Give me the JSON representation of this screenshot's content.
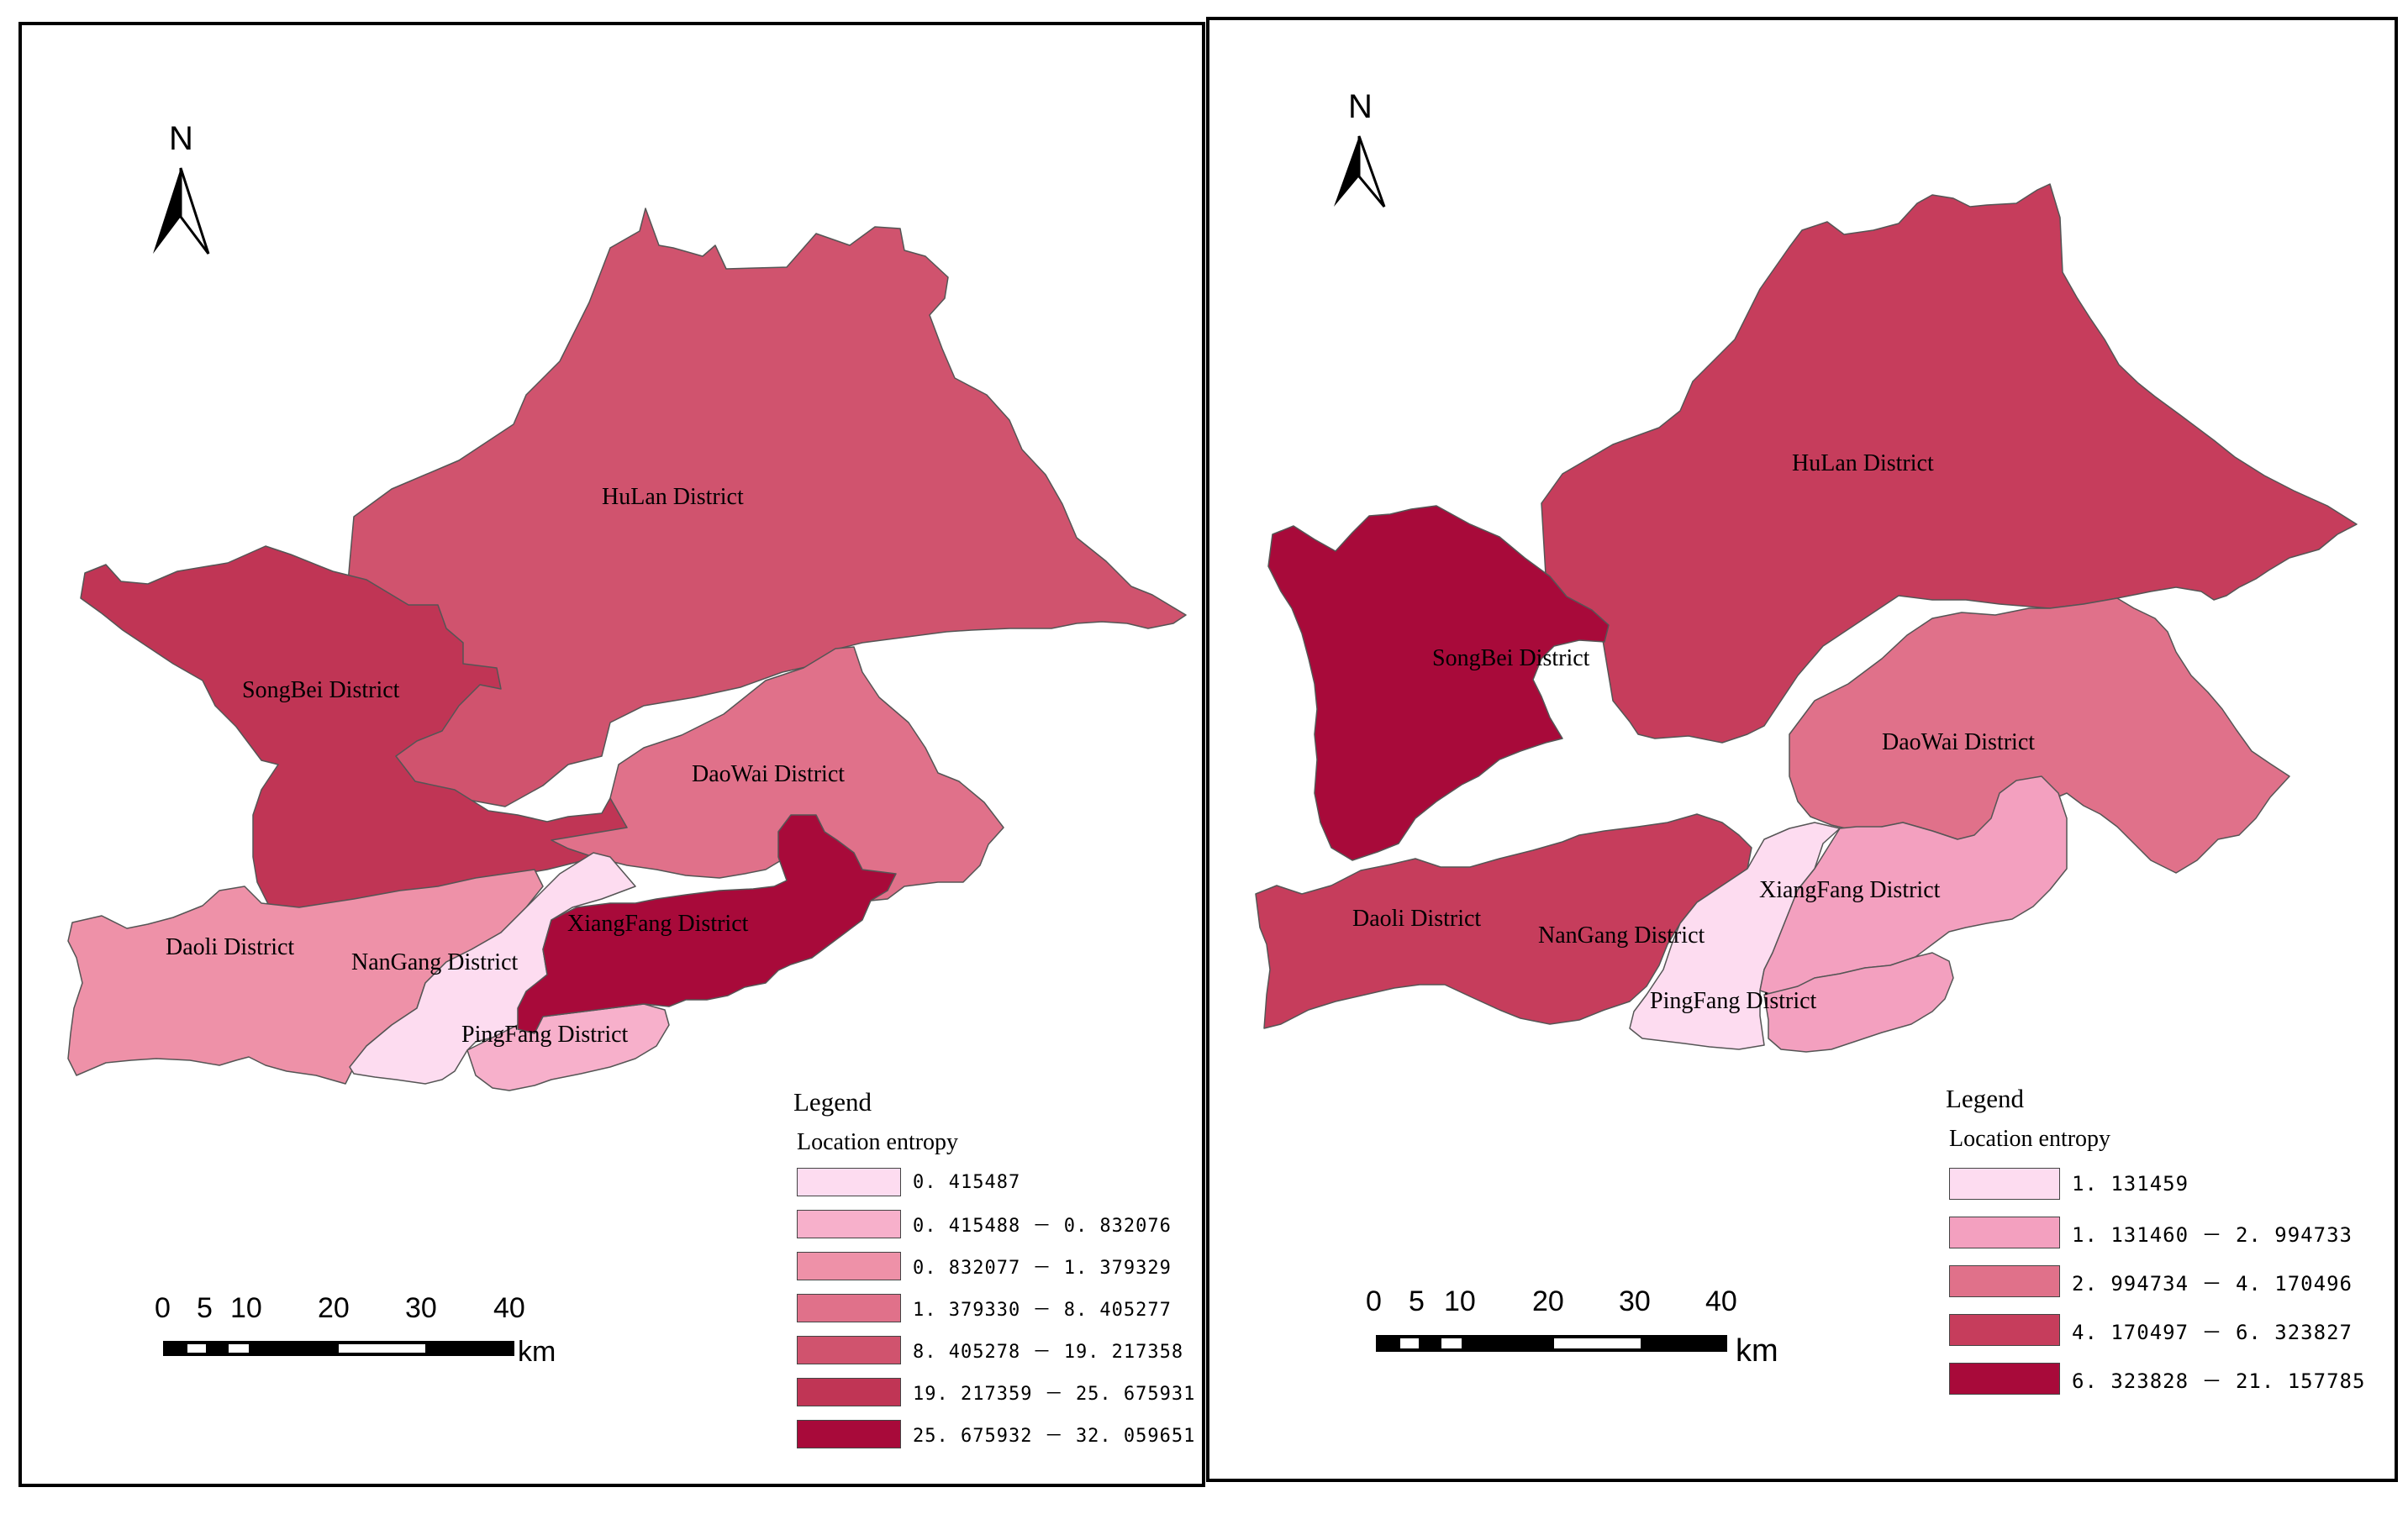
{
  "maps": [
    {
      "id": "left",
      "north": "N",
      "scale": {
        "ticks": [
          "0",
          "5",
          "10",
          "20",
          "30",
          "40"
        ],
        "unit": "km"
      },
      "legend": {
        "title": "Legend",
        "subtitle": "Location entropy",
        "classes": [
          {
            "label": "0. 415487",
            "color": "#fddcf0"
          },
          {
            "label": "0. 415488 － 0. 832076",
            "color": "#f7b0cb"
          },
          {
            "label": "0. 832077 － 1. 379329",
            "color": "#ee91a8"
          },
          {
            "label": "1. 379330 － 8. 405277",
            "color": "#e0718a"
          },
          {
            "label": "8. 405278 － 19. 217358",
            "color": "#d0536e"
          },
          {
            "label": "19. 217359 － 25. 675931",
            "color": "#c03555"
          },
          {
            "label": "25. 675932 － 32. 059651",
            "color": "#a80a3a"
          }
        ]
      },
      "districts": [
        {
          "name": "HuLan District",
          "value_class": 4
        },
        {
          "name": "SongBei District",
          "value_class": 5
        },
        {
          "name": "DaoWai District",
          "value_class": 3
        },
        {
          "name": "XiangFang District",
          "value_class": 6
        },
        {
          "name": "Daoli District",
          "value_class": 2
        },
        {
          "name": "NanGang District",
          "value_class": 0
        },
        {
          "name": "PingFang District",
          "value_class": 1
        }
      ]
    },
    {
      "id": "right",
      "north": "N",
      "scale": {
        "ticks": [
          "0",
          "5",
          "10",
          "20",
          "30",
          "40"
        ],
        "unit": "km"
      },
      "legend": {
        "title": "Legend",
        "subtitle": "Location entropy",
        "classes": [
          {
            "label": "1. 131459",
            "color": "#fddcf0"
          },
          {
            "label": "1. 131460 － 2. 994733",
            "color": "#f3a0bf"
          },
          {
            "label": "2. 994734 － 4. 170496",
            "color": "#e0718a"
          },
          {
            "label": "4. 170497 － 6. 323827",
            "color": "#c63d5c"
          },
          {
            "label": "6. 323828 － 21. 157785",
            "color": "#a80a3a"
          }
        ]
      },
      "districts": [
        {
          "name": "HuLan District",
          "value_class": 3
        },
        {
          "name": "SongBei District",
          "value_class": 4
        },
        {
          "name": "DaoWai District",
          "value_class": 2
        },
        {
          "name": "XiangFang District",
          "value_class": 1
        },
        {
          "name": "Daoli District",
          "value_class": 3
        },
        {
          "name": "NanGang District",
          "value_class": 0
        },
        {
          "name": "PingFang District",
          "value_class": 1
        }
      ]
    }
  ]
}
